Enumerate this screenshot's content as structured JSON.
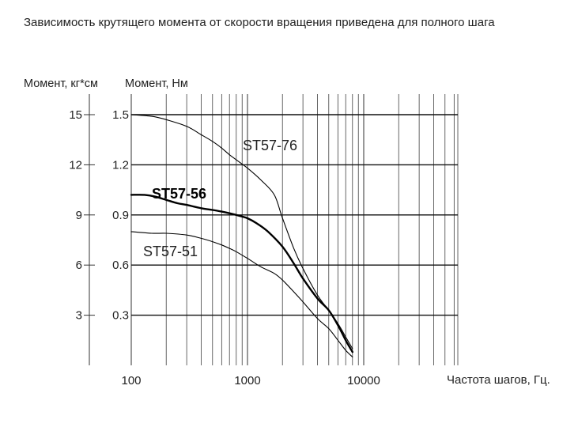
{
  "title": "Зависимость крутящего момента от скорости вращения приведена для полного шага",
  "chart_data": {
    "type": "line",
    "xscale": "log",
    "xlim": [
      100,
      20000
    ],
    "ylim": [
      0,
      1.5
    ],
    "grid": true,
    "xlabel": "Частота шагов, Гц.",
    "ylabel_left": "Момент, кг*см",
    "ylabel_right": "Момент, Нм",
    "xticks": [
      {
        "value": 100,
        "label": "100"
      },
      {
        "value": 1000,
        "label": "1000"
      },
      {
        "value": 10000,
        "label": "10000"
      }
    ],
    "yticks_nm": [
      {
        "value": 0.3,
        "label": "0.3"
      },
      {
        "value": 0.6,
        "label": "0.6"
      },
      {
        "value": 0.9,
        "label": "0.9"
      },
      {
        "value": 1.2,
        "label": "1.2"
      },
      {
        "value": 1.5,
        "label": "1.5"
      }
    ],
    "yticks_kgcm": [
      {
        "value": 0.3,
        "label": "3"
      },
      {
        "value": 0.6,
        "label": "6"
      },
      {
        "value": 0.9,
        "label": "9"
      },
      {
        "value": 1.2,
        "label": "12"
      },
      {
        "value": 1.5,
        "label": "15"
      }
    ],
    "series": [
      {
        "name": "ST57-76",
        "emphasis": false,
        "x": [
          100,
          150,
          200,
          300,
          400,
          500,
          600,
          700,
          800,
          1000,
          1300,
          1700,
          2000,
          2500,
          3000,
          4000,
          5000,
          6000,
          7000,
          8000
        ],
        "y": [
          1.5,
          1.49,
          1.47,
          1.43,
          1.38,
          1.34,
          1.3,
          1.26,
          1.23,
          1.18,
          1.11,
          1.02,
          0.88,
          0.7,
          0.58,
          0.42,
          0.33,
          0.25,
          0.17,
          0.1
        ]
      },
      {
        "name": "ST57-56",
        "emphasis": true,
        "x": [
          100,
          130,
          160,
          200,
          250,
          300,
          400,
          500,
          600,
          700,
          800,
          900,
          1000,
          1200,
          1500,
          2000,
          2500,
          3000,
          4000,
          5000,
          6000,
          7000,
          8000
        ],
        "y": [
          1.02,
          1.02,
          1.01,
          0.99,
          0.97,
          0.96,
          0.94,
          0.93,
          0.92,
          0.91,
          0.9,
          0.89,
          0.88,
          0.85,
          0.8,
          0.71,
          0.61,
          0.52,
          0.4,
          0.33,
          0.24,
          0.15,
          0.08
        ]
      },
      {
        "name": "ST57-51",
        "emphasis": false,
        "x": [
          100,
          150,
          200,
          300,
          400,
          500,
          600,
          700,
          800,
          1000,
          1300,
          1700,
          2000,
          2500,
          3000,
          4000,
          5000,
          6000,
          7000,
          8000
        ],
        "y": [
          0.8,
          0.79,
          0.79,
          0.78,
          0.76,
          0.74,
          0.72,
          0.7,
          0.68,
          0.64,
          0.59,
          0.55,
          0.51,
          0.44,
          0.38,
          0.28,
          0.22,
          0.15,
          0.09,
          0.05
        ]
      }
    ]
  }
}
